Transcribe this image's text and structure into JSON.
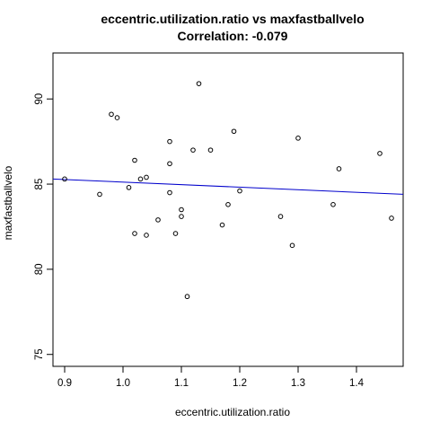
{
  "chart_data": {
    "type": "scatter",
    "title_line1": "eccentric.utilization.ratio vs maxfastballvelo",
    "title_line2": "Correlation: -0.079",
    "xlabel": "eccentric.utilization.ratio",
    "ylabel": "maxfastballvelo",
    "xlim": [
      0.88,
      1.48
    ],
    "ylim": [
      74.3,
      92.7
    ],
    "xticks": [
      0.9,
      1.0,
      1.1,
      1.2,
      1.3,
      1.4
    ],
    "xtick_labels": [
      "0.9",
      "1.0",
      "1.1",
      "1.2",
      "1.3",
      "1.4"
    ],
    "yticks": [
      75,
      80,
      85,
      90
    ],
    "ytick_labels": [
      "75",
      "80",
      "85",
      "90"
    ],
    "grid": false,
    "points": [
      {
        "x": 0.9,
        "y": 85.3
      },
      {
        "x": 0.96,
        "y": 84.4
      },
      {
        "x": 0.98,
        "y": 89.1
      },
      {
        "x": 0.99,
        "y": 88.9
      },
      {
        "x": 1.01,
        "y": 84.8
      },
      {
        "x": 1.02,
        "y": 86.4
      },
      {
        "x": 1.02,
        "y": 82.1
      },
      {
        "x": 1.03,
        "y": 85.3
      },
      {
        "x": 1.04,
        "y": 85.4
      },
      {
        "x": 1.04,
        "y": 82.0
      },
      {
        "x": 1.06,
        "y": 82.9
      },
      {
        "x": 1.08,
        "y": 87.5
      },
      {
        "x": 1.08,
        "y": 86.2
      },
      {
        "x": 1.08,
        "y": 84.5
      },
      {
        "x": 1.09,
        "y": 82.1
      },
      {
        "x": 1.1,
        "y": 83.5
      },
      {
        "x": 1.1,
        "y": 83.1
      },
      {
        "x": 1.11,
        "y": 78.4
      },
      {
        "x": 1.12,
        "y": 87.0
      },
      {
        "x": 1.13,
        "y": 90.9
      },
      {
        "x": 1.15,
        "y": 87.0
      },
      {
        "x": 1.17,
        "y": 82.6
      },
      {
        "x": 1.18,
        "y": 83.8
      },
      {
        "x": 1.19,
        "y": 88.1
      },
      {
        "x": 1.2,
        "y": 84.6
      },
      {
        "x": 1.27,
        "y": 83.1
      },
      {
        "x": 1.29,
        "y": 81.4
      },
      {
        "x": 1.3,
        "y": 87.7
      },
      {
        "x": 1.36,
        "y": 83.8
      },
      {
        "x": 1.37,
        "y": 85.9
      },
      {
        "x": 1.44,
        "y": 86.8
      },
      {
        "x": 1.46,
        "y": 83.0
      }
    ],
    "regression_line": {
      "x": [
        0.88,
        1.48
      ],
      "y": [
        85.3,
        84.4
      ],
      "color": "#0000cc"
    },
    "point_color": "#000000"
  }
}
